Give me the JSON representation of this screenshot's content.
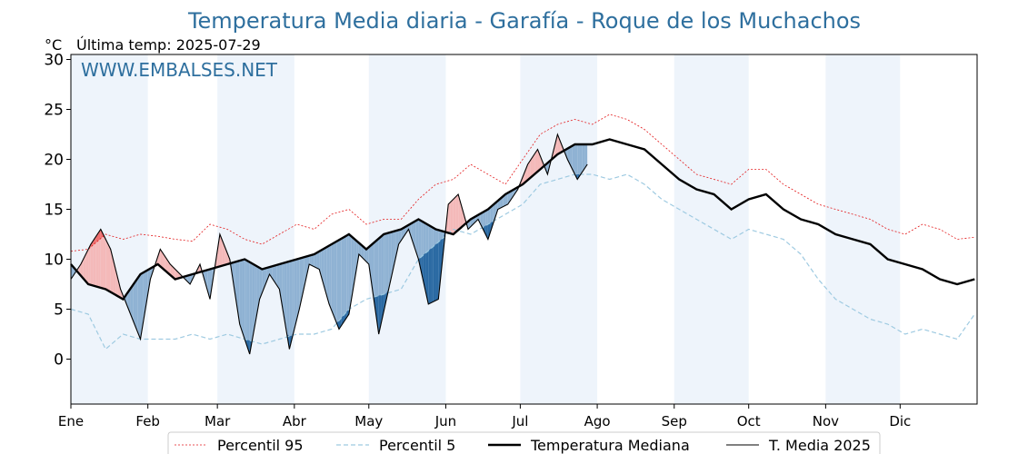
{
  "chart_data": {
    "type": "line",
    "title": "Temperatura Media diaria - Garafía - Roque de los Muchachos",
    "ylabel": "°C",
    "last_temp_label": "Última temp: 2025-07-29",
    "watermark": "WWW.EMBALSES.NET",
    "ylim": [
      -4.5,
      30.5
    ],
    "yticks": [
      0,
      5,
      10,
      15,
      20,
      25,
      30
    ],
    "xlim": [
      1,
      366
    ],
    "months": [
      "Ene",
      "Feb",
      "Mar",
      "Abr",
      "May",
      "Jun",
      "Jul",
      "Ago",
      "Sep",
      "Oct",
      "Nov",
      "Dic"
    ],
    "month_start_days": [
      1,
      32,
      60,
      91,
      121,
      152,
      182,
      213,
      244,
      274,
      305,
      335
    ],
    "legend_position": "bottom",
    "grid": false,
    "colors": {
      "p95": "#e31a1c",
      "p5": "#9ecae1",
      "median": "#000000",
      "current": "#000000",
      "above_light": "#f4b9b9",
      "above_dark": "#ee6f6f",
      "below_light": "#8fb2d3",
      "below_dark": "#2b6aa3",
      "month_band": "#eef4fb",
      "title": "#2e6f9e"
    },
    "series": [
      {
        "name": "Percentil 95",
        "key": "p95",
        "x": [
          1,
          8,
          15,
          22,
          29,
          36,
          43,
          50,
          57,
          64,
          71,
          78,
          85,
          92,
          99,
          106,
          113,
          120,
          127,
          134,
          141,
          148,
          155,
          162,
          169,
          176,
          183,
          190,
          197,
          204,
          211,
          218,
          225,
          232,
          239,
          246,
          253,
          260,
          267,
          274,
          281,
          288,
          295,
          302,
          309,
          316,
          323,
          330,
          337,
          344,
          351,
          358,
          365
        ],
        "values": [
          10.8,
          11.0,
          12.5,
          12.0,
          12.5,
          12.3,
          12.0,
          11.8,
          13.5,
          13.0,
          12.0,
          11.5,
          12.5,
          13.5,
          13.0,
          14.5,
          15.0,
          13.5,
          14.0,
          14.0,
          16.0,
          17.5,
          18.0,
          19.5,
          18.5,
          17.5,
          20.0,
          22.5,
          23.5,
          24.0,
          23.5,
          24.5,
          24.0,
          23.0,
          21.5,
          20.0,
          18.5,
          18.0,
          17.5,
          19.0,
          19.0,
          17.5,
          16.5,
          15.5,
          15.0,
          14.5,
          14.0,
          13.0,
          12.5,
          13.5,
          13.0,
          12.0,
          12.2
        ]
      },
      {
        "name": "Percentil 5",
        "key": "p5",
        "x": [
          1,
          8,
          15,
          22,
          29,
          36,
          43,
          50,
          57,
          64,
          71,
          78,
          85,
          92,
          99,
          106,
          113,
          120,
          127,
          134,
          141,
          148,
          155,
          162,
          169,
          176,
          183,
          190,
          197,
          204,
          211,
          218,
          225,
          232,
          239,
          246,
          253,
          260,
          267,
          274,
          281,
          288,
          295,
          302,
          309,
          316,
          323,
          330,
          337,
          344,
          351,
          358,
          365
        ],
        "values": [
          5.0,
          4.5,
          1.0,
          2.5,
          2.0,
          2.0,
          2.0,
          2.5,
          2.0,
          2.5,
          2.0,
          1.5,
          2.0,
          2.5,
          2.5,
          3.0,
          5.0,
          6.0,
          6.5,
          7.0,
          10.0,
          11.5,
          13.0,
          12.5,
          13.5,
          14.5,
          15.5,
          17.5,
          18.0,
          18.5,
          18.5,
          18.0,
          18.5,
          17.5,
          16.0,
          15.0,
          14.0,
          13.0,
          12.0,
          13.0,
          12.5,
          12.0,
          10.5,
          8.0,
          6.0,
          5.0,
          4.0,
          3.5,
          2.5,
          3.0,
          2.5,
          2.0,
          4.5
        ]
      },
      {
        "name": "Temperatura Mediana",
        "key": "median",
        "x": [
          1,
          8,
          15,
          22,
          29,
          36,
          43,
          50,
          57,
          64,
          71,
          78,
          85,
          92,
          99,
          106,
          113,
          120,
          127,
          134,
          141,
          148,
          155,
          162,
          169,
          176,
          183,
          190,
          197,
          204,
          211,
          218,
          225,
          232,
          239,
          246,
          253,
          260,
          267,
          274,
          281,
          288,
          295,
          302,
          309,
          316,
          323,
          330,
          337,
          344,
          351,
          358,
          365
        ],
        "values": [
          9.5,
          7.5,
          7.0,
          6.0,
          8.5,
          9.5,
          8.0,
          8.5,
          9.0,
          9.5,
          10.0,
          9.0,
          9.5,
          10.0,
          10.5,
          11.5,
          12.5,
          11.0,
          12.5,
          13.0,
          14.0,
          13.0,
          12.5,
          14.0,
          15.0,
          16.5,
          17.5,
          19.0,
          20.5,
          21.5,
          21.5,
          22.0,
          21.5,
          21.0,
          19.5,
          18.0,
          17.0,
          16.5,
          15.0,
          16.0,
          16.5,
          15.0,
          14.0,
          13.5,
          12.5,
          12.0,
          11.5,
          10.0,
          9.5,
          9.0,
          8.0,
          7.5,
          8.0
        ]
      },
      {
        "name": "T. Media 2025",
        "key": "current",
        "x": [
          1,
          5,
          9,
          13,
          17,
          21,
          25,
          29,
          33,
          37,
          41,
          45,
          49,
          53,
          57,
          61,
          65,
          69,
          73,
          77,
          81,
          85,
          89,
          93,
          97,
          101,
          105,
          109,
          113,
          117,
          121,
          125,
          129,
          133,
          137,
          141,
          145,
          149,
          153,
          157,
          161,
          165,
          169,
          173,
          177,
          181,
          185,
          189,
          193,
          197,
          201,
          205,
          209
        ],
        "values": [
          8.0,
          9.5,
          11.5,
          13.0,
          11.0,
          7.0,
          4.5,
          2.0,
          8.0,
          11.0,
          9.5,
          8.5,
          7.5,
          9.5,
          6.0,
          12.5,
          10.0,
          3.5,
          0.5,
          6.0,
          8.5,
          7.0,
          1.0,
          5.0,
          9.5,
          9.0,
          5.5,
          3.0,
          4.5,
          10.5,
          9.5,
          2.5,
          7.0,
          11.5,
          13.0,
          10.0,
          5.5,
          6.0,
          15.5,
          16.5,
          13.0,
          14.0,
          12.0,
          15.0,
          15.5,
          17.0,
          19.5,
          21.0,
          18.5,
          22.5,
          20.0,
          18.0,
          19.5
        ]
      }
    ]
  }
}
